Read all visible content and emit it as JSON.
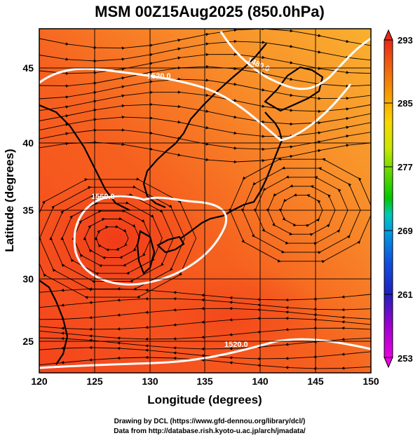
{
  "title": "MSM 00Z15Aug2025 (850.0hPa)",
  "xaxis": {
    "label": "Longitude (degrees)",
    "range": [
      120,
      150
    ],
    "ticks": [
      "120",
      "125",
      "130",
      "135",
      "140",
      "145",
      "150"
    ]
  },
  "yaxis": {
    "label": "Latitude  (degrees)",
    "range": [
      22.4,
      47.6
    ],
    "ticks": [
      "25",
      "30",
      "35",
      "40",
      "45"
    ]
  },
  "colorbar": {
    "min": 253,
    "max": 293,
    "ticks": [
      "293",
      "285",
      "277",
      "269",
      "261",
      "253"
    ],
    "colors": [
      "#e800e0",
      "#a000d0",
      "#2020c0",
      "#1050e0",
      "#00a0e0",
      "#00c8b8",
      "#00c800",
      "#60d800",
      "#c8e800",
      "#f8d800",
      "#f8a000",
      "#f06010",
      "#e82818"
    ]
  },
  "contour_labels": [
    "1480.0",
    "1520.0",
    "1560.0",
    "1520.0"
  ],
  "field_colors": {
    "warm": "#f5441c",
    "mid": "#f77a22",
    "cool": "#f9a52c",
    "coolest": "#fbb830",
    "contour": "#ffffff",
    "coast": "#000000"
  },
  "credits": {
    "line1": "Drawing by DCL (https://www.gfd-dennou.org/library/dcl/)",
    "line2": "Data from http://database.rish.kyoto-u.ac.jp/arch/jmadata/"
  }
}
